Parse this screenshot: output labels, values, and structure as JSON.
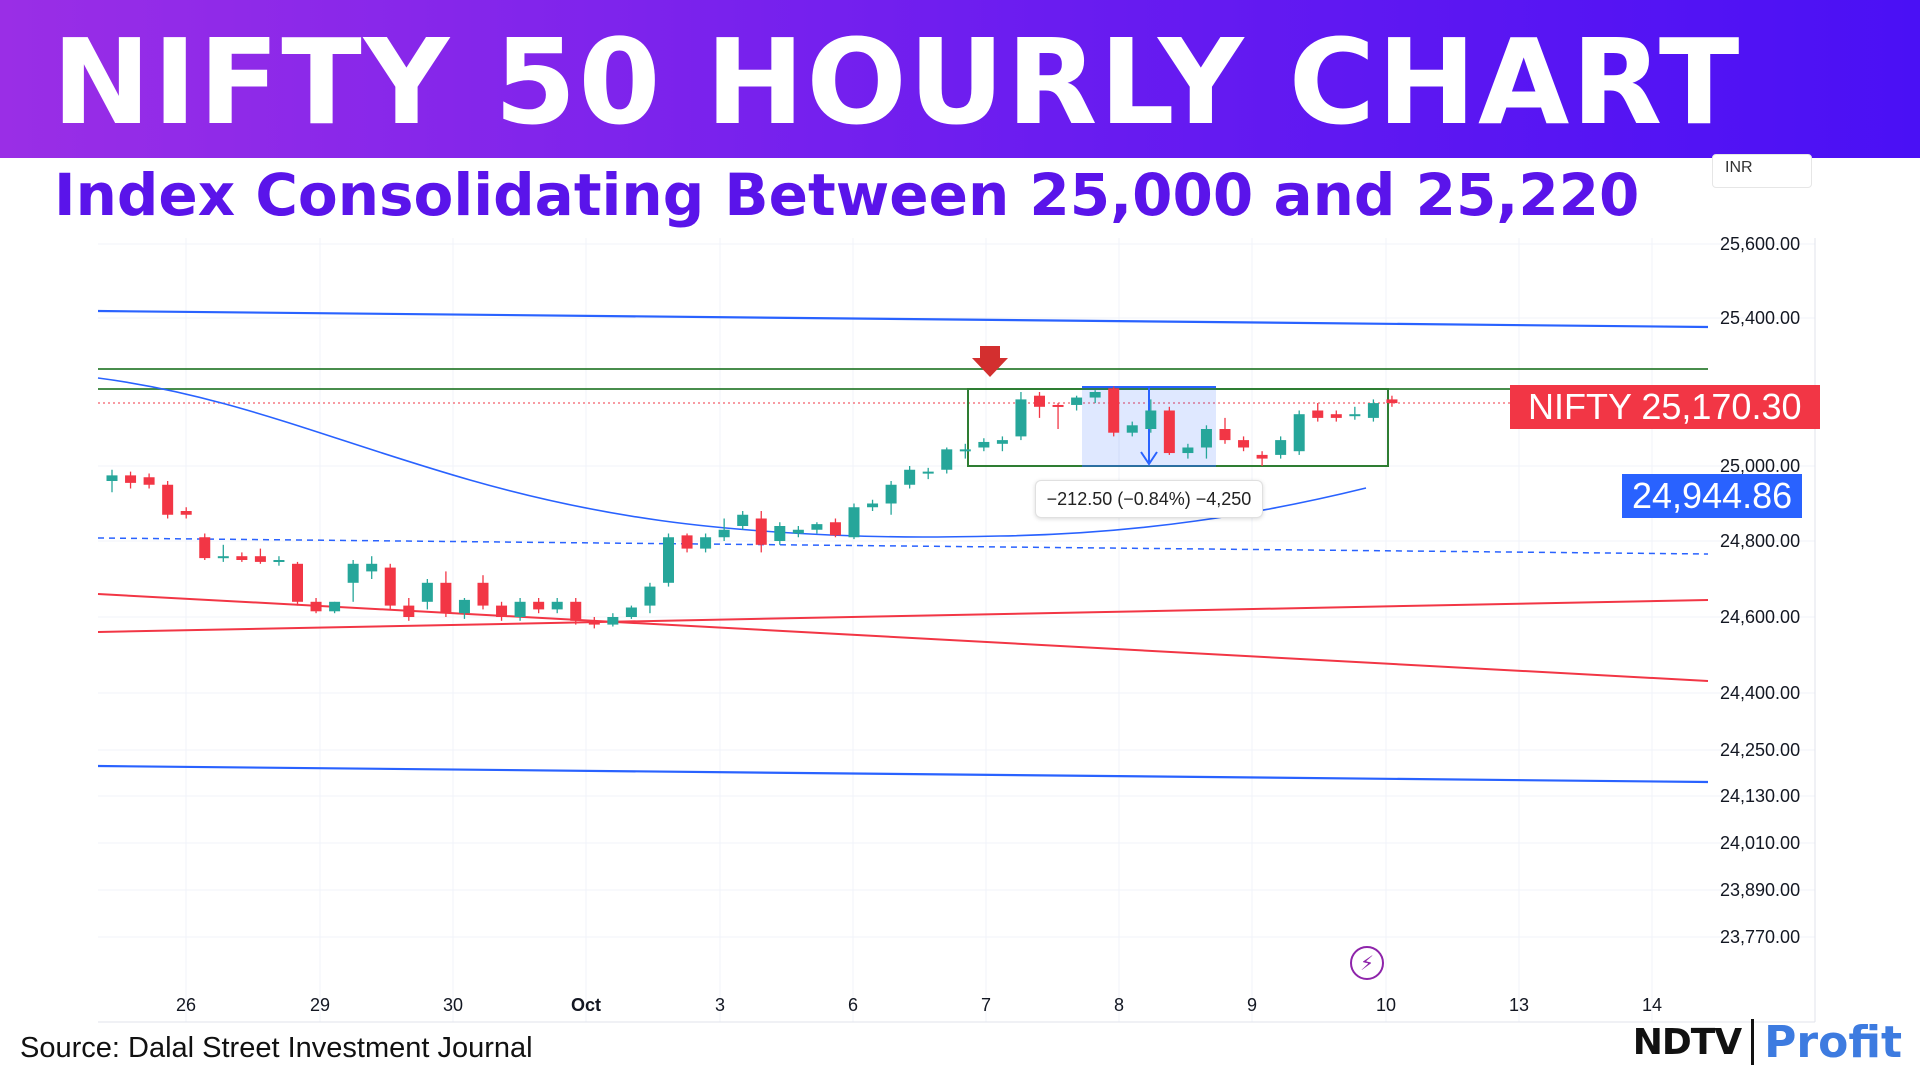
{
  "header": {
    "title": "NIFTY 50 HOURLY CHART",
    "subtitle": "Index Consolidating Between 25,000 and 25,220"
  },
  "footer": {
    "source": "Source: Dalal Street Investment Journal",
    "brand_left": "NDTV",
    "brand_right": "Profit"
  },
  "chart_data": {
    "type": "candlestick",
    "currency_label": "INR",
    "y_ticks": [
      "25,600.00",
      "25,400.00",
      "25,000.00",
      "24,800.00",
      "24,600.00",
      "24,400.00",
      "24,250.00",
      "24,130.00",
      "24,010.00",
      "23,890.00",
      "23,770.00"
    ],
    "x_ticks": [
      "26",
      "29",
      "30",
      "Oct",
      "3",
      "6",
      "7",
      "8",
      "9",
      "10",
      "13",
      "14"
    ],
    "last_price_label": "NIFTY 25,170.30",
    "moving_average_label": "24,944.86",
    "measure_label": "−212.50 (−0.84%) −4,250",
    "colors": {
      "up": "#26a69a",
      "down": "#f23645",
      "ma": "#2962ff",
      "support": "#f23645",
      "channel": "#2962ff",
      "range_box": "#2e7d32"
    },
    "candles": [
      {
        "o": 24960,
        "h": 24990,
        "l": 24930,
        "c": 24975
      },
      {
        "o": 24975,
        "h": 24985,
        "l": 24940,
        "c": 24955
      },
      {
        "o": 24970,
        "h": 24980,
        "l": 24940,
        "c": 24950
      },
      {
        "o": 24950,
        "h": 24960,
        "l": 24860,
        "c": 24870
      },
      {
        "o": 24880,
        "h": 24890,
        "l": 24860,
        "c": 24870
      },
      {
        "o": 24810,
        "h": 24820,
        "l": 24750,
        "c": 24755
      },
      {
        "o": 24760,
        "h": 24790,
        "l": 24745,
        "c": 24760
      },
      {
        "o": 24760,
        "h": 24770,
        "l": 24745,
        "c": 24750
      },
      {
        "o": 24760,
        "h": 24780,
        "l": 24740,
        "c": 24745
      },
      {
        "o": 24745,
        "h": 24760,
        "l": 24735,
        "c": 24750
      },
      {
        "o": 24740,
        "h": 24745,
        "l": 24630,
        "c": 24640
      },
      {
        "o": 24640,
        "h": 24650,
        "l": 24610,
        "c": 24615
      },
      {
        "o": 24615,
        "h": 24640,
        "l": 24610,
        "c": 24640
      },
      {
        "o": 24690,
        "h": 24750,
        "l": 24640,
        "c": 24740
      },
      {
        "o": 24720,
        "h": 24760,
        "l": 24700,
        "c": 24740
      },
      {
        "o": 24730,
        "h": 24740,
        "l": 24620,
        "c": 24630
      },
      {
        "o": 24630,
        "h": 24650,
        "l": 24590,
        "c": 24600
      },
      {
        "o": 24640,
        "h": 24700,
        "l": 24620,
        "c": 24690
      },
      {
        "o": 24690,
        "h": 24720,
        "l": 24600,
        "c": 24610
      },
      {
        "o": 24610,
        "h": 24650,
        "l": 24595,
        "c": 24645
      },
      {
        "o": 24690,
        "h": 24710,
        "l": 24620,
        "c": 24630
      },
      {
        "o": 24630,
        "h": 24640,
        "l": 24590,
        "c": 24600
      },
      {
        "o": 24600,
        "h": 24650,
        "l": 24590,
        "c": 24640
      },
      {
        "o": 24640,
        "h": 24650,
        "l": 24610,
        "c": 24620
      },
      {
        "o": 24620,
        "h": 24650,
        "l": 24610,
        "c": 24640
      },
      {
        "o": 24640,
        "h": 24650,
        "l": 24580,
        "c": 24590
      },
      {
        "o": 24590,
        "h": 24600,
        "l": 24570,
        "c": 24580
      },
      {
        "o": 24580,
        "h": 24610,
        "l": 24575,
        "c": 24600
      },
      {
        "o": 24600,
        "h": 24630,
        "l": 24595,
        "c": 24625
      },
      {
        "o": 24630,
        "h": 24690,
        "l": 24610,
        "c": 24680
      },
      {
        "o": 24690,
        "h": 24820,
        "l": 24680,
        "c": 24810
      },
      {
        "o": 24815,
        "h": 24820,
        "l": 24770,
        "c": 24780
      },
      {
        "o": 24780,
        "h": 24820,
        "l": 24770,
        "c": 24810
      },
      {
        "o": 24810,
        "h": 24860,
        "l": 24800,
        "c": 24830
      },
      {
        "o": 24840,
        "h": 24880,
        "l": 24830,
        "c": 24870
      },
      {
        "o": 24860,
        "h": 24880,
        "l": 24770,
        "c": 24790
      },
      {
        "o": 24800,
        "h": 24850,
        "l": 24790,
        "c": 24840
      },
      {
        "o": 24820,
        "h": 24840,
        "l": 24810,
        "c": 24830
      },
      {
        "o": 24830,
        "h": 24850,
        "l": 24820,
        "c": 24845
      },
      {
        "o": 24850,
        "h": 24860,
        "l": 24810,
        "c": 24815
      },
      {
        "o": 24810,
        "h": 24900,
        "l": 24805,
        "c": 24890
      },
      {
        "o": 24890,
        "h": 24910,
        "l": 24880,
        "c": 24900
      },
      {
        "o": 24900,
        "h": 24960,
        "l": 24870,
        "c": 24950
      },
      {
        "o": 24950,
        "h": 25000,
        "l": 24940,
        "c": 24990
      },
      {
        "o": 24985,
        "h": 24995,
        "l": 24965,
        "c": 24985
      },
      {
        "o": 24990,
        "h": 25050,
        "l": 24980,
        "c": 25045
      },
      {
        "o": 25040,
        "h": 25060,
        "l": 25020,
        "c": 25045
      },
      {
        "o": 25050,
        "h": 25075,
        "l": 25040,
        "c": 25065
      },
      {
        "o": 25060,
        "h": 25080,
        "l": 25040,
        "c": 25070
      },
      {
        "o": 25080,
        "h": 25200,
        "l": 25070,
        "c": 25180
      },
      {
        "o": 25190,
        "h": 25200,
        "l": 25130,
        "c": 25160
      },
      {
        "o": 25165,
        "h": 25170,
        "l": 25100,
        "c": 25160
      },
      {
        "o": 25165,
        "h": 25190,
        "l": 25150,
        "c": 25185
      },
      {
        "o": 25185,
        "h": 25205,
        "l": 25170,
        "c": 25200
      },
      {
        "o": 25210,
        "h": 25215,
        "l": 25080,
        "c": 25090
      },
      {
        "o": 25090,
        "h": 25120,
        "l": 25080,
        "c": 25110
      },
      {
        "o": 25100,
        "h": 25180,
        "l": 25090,
        "c": 25150
      },
      {
        "o": 25150,
        "h": 25160,
        "l": 25030,
        "c": 25035
      },
      {
        "o": 25035,
        "h": 25060,
        "l": 25020,
        "c": 25050
      },
      {
        "o": 25050,
        "h": 25110,
        "l": 25020,
        "c": 25100
      },
      {
        "o": 25100,
        "h": 25130,
        "l": 25060,
        "c": 25070
      },
      {
        "o": 25070,
        "h": 25080,
        "l": 25040,
        "c": 25050
      },
      {
        "o": 25030,
        "h": 25040,
        "l": 25000,
        "c": 25020
      },
      {
        "o": 25030,
        "h": 25080,
        "l": 25020,
        "c": 25070
      },
      {
        "o": 25040,
        "h": 25150,
        "l": 25030,
        "c": 25140
      },
      {
        "o": 25150,
        "h": 25170,
        "l": 25120,
        "c": 25130
      },
      {
        "o": 25140,
        "h": 25150,
        "l": 25120,
        "c": 25130
      },
      {
        "o": 25135,
        "h": 25160,
        "l": 25125,
        "c": 25140
      },
      {
        "o": 25130,
        "h": 25180,
        "l": 25120,
        "c": 25170
      },
      {
        "o": 25180,
        "h": 25190,
        "l": 25160,
        "c": 25170
      }
    ]
  }
}
